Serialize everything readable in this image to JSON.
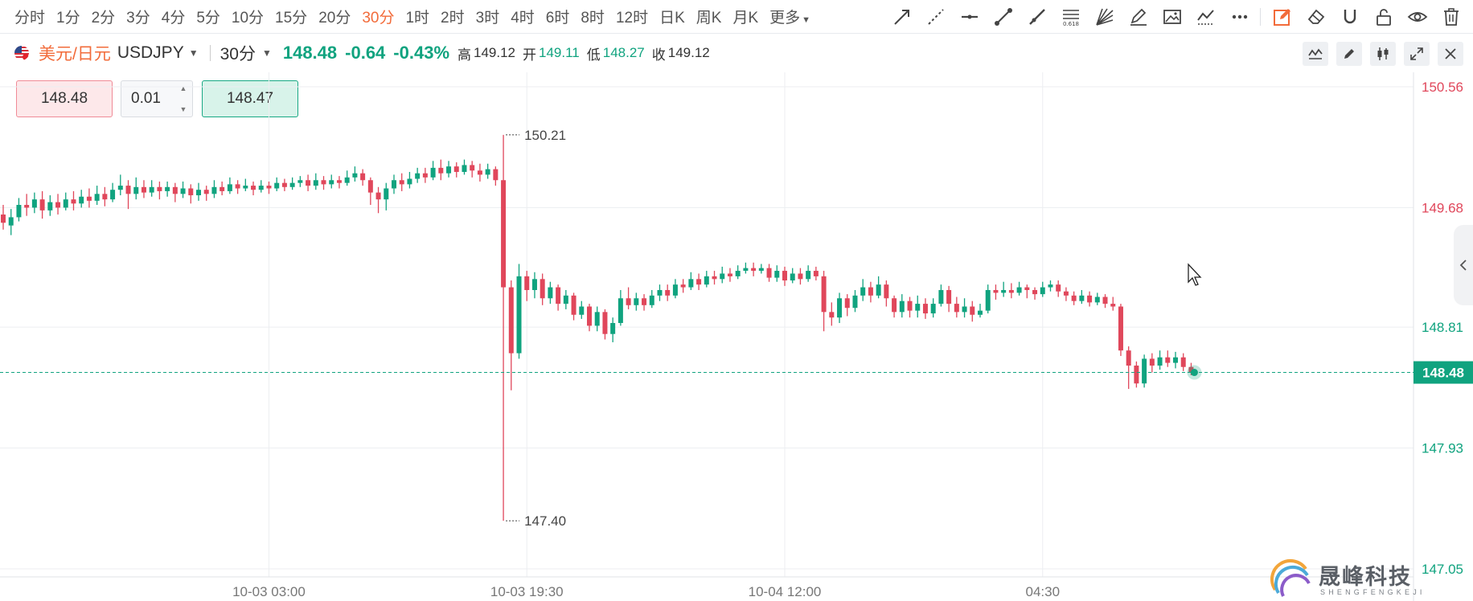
{
  "toolbar": {
    "periods": [
      "分时",
      "1分",
      "2分",
      "3分",
      "4分",
      "5分",
      "10分",
      "15分",
      "20分",
      "30分",
      "1时",
      "2时",
      "3时",
      "4时",
      "6时",
      "8时",
      "12时",
      "日K",
      "周K",
      "月K",
      "更多"
    ],
    "active_period": "30分",
    "tools": [
      "arrow-line-icon",
      "dashed-line-icon",
      "horizontal-line-icon",
      "segment-icon",
      "ray-icon",
      "fibonacci-icon",
      "fan-icon",
      "highlighter-icon",
      "image-icon",
      "trend-icon",
      "more-dots-icon",
      "edit-icon",
      "eraser-icon",
      "magnet-icon",
      "unlock-icon",
      "eye-icon",
      "trash-icon"
    ]
  },
  "info": {
    "symbol_cn": "美元/日元",
    "symbol_en": "USDJPY",
    "timeframe": "30分",
    "price": "148.48",
    "change": "-0.64",
    "change_pct": "-0.43%",
    "high_label": "高",
    "high": "149.12",
    "open_label": "开",
    "open": "149.11",
    "low_label": "低",
    "low": "148.27",
    "close_label": "收",
    "close": "149.12"
  },
  "trade": {
    "sell_price": "148.48",
    "quantity": "0.01",
    "buy_price": "148.47"
  },
  "colors": {
    "up": "#10a37f",
    "down": "#e0475b",
    "accent": "#f26b3a"
  },
  "watermark": {
    "text": "晟峰科技",
    "sub": "SHENGFENGKEJI"
  },
  "chart_data": {
    "type": "candlestick",
    "title": "",
    "ylim": [
      147.05,
      150.56
    ],
    "y_ticks": [
      {
        "label": "150.56",
        "value": 150.56,
        "color": "#e0475b"
      },
      {
        "label": "149.68",
        "value": 149.68,
        "color": "#e0475b"
      },
      {
        "label": "148.81",
        "value": 148.81,
        "color": "#10a37f"
      },
      {
        "label": "147.93",
        "value": 147.93,
        "color": "#10a37f"
      },
      {
        "label": "147.05",
        "value": 147.05,
        "color": "#10a37f"
      }
    ],
    "x_ticks": [
      {
        "label": "10-03 03:00",
        "index": 34
      },
      {
        "label": "10-03 19:30",
        "index": 67
      },
      {
        "label": "10-04 12:00",
        "index": 100
      },
      {
        "label": "04:30",
        "index": 133
      }
    ],
    "current_price": {
      "label": "148.48",
      "value": 148.48
    },
    "annotations": [
      {
        "label": "150.21",
        "value": 150.21,
        "index": 64
      },
      {
        "label": "147.40",
        "value": 147.4,
        "index": 64
      }
    ],
    "candles": [
      [
        149.63,
        149.57,
        149.7,
        149.52
      ],
      [
        149.55,
        149.61,
        149.67,
        149.48
      ],
      [
        149.61,
        149.7,
        149.75,
        149.58
      ],
      [
        149.7,
        149.68,
        149.78,
        149.62
      ],
      [
        149.68,
        149.74,
        149.79,
        149.64
      ],
      [
        149.74,
        149.66,
        149.8,
        149.6
      ],
      [
        149.66,
        149.72,
        149.77,
        149.62
      ],
      [
        149.72,
        149.68,
        149.78,
        149.63
      ],
      [
        149.68,
        149.74,
        149.79,
        149.66
      ],
      [
        149.74,
        149.71,
        149.8,
        149.66
      ],
      [
        149.71,
        149.76,
        149.81,
        149.68
      ],
      [
        149.76,
        149.73,
        149.82,
        149.68
      ],
      [
        149.73,
        149.78,
        149.84,
        149.7
      ],
      [
        149.78,
        149.74,
        149.83,
        149.69
      ],
      [
        149.74,
        149.81,
        149.86,
        149.72
      ],
      [
        149.81,
        149.84,
        149.92,
        149.77
      ],
      [
        149.84,
        149.78,
        149.88,
        149.67
      ],
      [
        149.78,
        149.83,
        149.9,
        149.74
      ],
      [
        149.83,
        149.79,
        149.88,
        149.75
      ],
      [
        149.79,
        149.83,
        149.88,
        149.76
      ],
      [
        149.83,
        149.8,
        149.87,
        149.74
      ],
      [
        149.8,
        149.83,
        149.87,
        149.76
      ],
      [
        149.83,
        149.78,
        149.86,
        149.72
      ],
      [
        149.78,
        149.82,
        149.87,
        149.75
      ],
      [
        149.82,
        149.77,
        149.85,
        149.71
      ],
      [
        149.77,
        149.81,
        149.86,
        149.73
      ],
      [
        149.81,
        149.78,
        149.84,
        149.73
      ],
      [
        149.78,
        149.83,
        149.88,
        149.75
      ],
      [
        149.83,
        149.8,
        149.87,
        149.77
      ],
      [
        149.8,
        149.85,
        149.9,
        149.78
      ],
      [
        149.85,
        149.82,
        149.88,
        149.78
      ],
      [
        149.82,
        149.84,
        149.89,
        149.8
      ],
      [
        149.84,
        149.81,
        149.87,
        149.77
      ],
      [
        149.81,
        149.84,
        149.88,
        149.79
      ],
      [
        149.84,
        149.82,
        149.87,
        149.78
      ],
      [
        149.82,
        149.86,
        149.9,
        149.8
      ],
      [
        149.86,
        149.83,
        149.89,
        149.8
      ],
      [
        149.83,
        149.86,
        149.9,
        149.81
      ],
      [
        149.86,
        149.88,
        149.91,
        149.83
      ],
      [
        149.88,
        149.84,
        149.92,
        149.8
      ],
      [
        149.84,
        149.88,
        149.93,
        149.81
      ],
      [
        149.88,
        149.85,
        149.91,
        149.81
      ],
      [
        149.85,
        149.88,
        149.92,
        149.82
      ],
      [
        149.88,
        149.86,
        149.91,
        149.82
      ],
      [
        149.86,
        149.9,
        149.95,
        149.84
      ],
      [
        149.9,
        149.93,
        149.98,
        149.87
      ],
      [
        149.93,
        149.88,
        149.96,
        149.84
      ],
      [
        149.88,
        149.79,
        149.9,
        149.7
      ],
      [
        149.79,
        149.74,
        149.83,
        149.64
      ],
      [
        149.74,
        149.82,
        149.86,
        149.66
      ],
      [
        149.82,
        149.88,
        149.92,
        149.78
      ],
      [
        149.88,
        149.85,
        149.93,
        149.8
      ],
      [
        149.85,
        149.89,
        149.94,
        149.82
      ],
      [
        149.89,
        149.93,
        149.97,
        149.86
      ],
      [
        149.93,
        149.9,
        149.97,
        149.86
      ],
      [
        149.9,
        149.97,
        150.02,
        149.88
      ],
      [
        149.97,
        149.93,
        150.03,
        149.88
      ],
      [
        149.93,
        149.98,
        150.02,
        149.9
      ],
      [
        149.98,
        149.94,
        150.01,
        149.9
      ],
      [
        149.94,
        149.99,
        150.03,
        149.92
      ],
      [
        149.99,
        149.95,
        150.02,
        149.9
      ],
      [
        149.95,
        149.92,
        150.0,
        149.87
      ],
      [
        149.92,
        149.96,
        150.0,
        149.89
      ],
      [
        149.96,
        149.88,
        149.98,
        149.84
      ],
      [
        149.88,
        149.1,
        150.21,
        147.4
      ],
      [
        149.1,
        148.62,
        149.15,
        148.35
      ],
      [
        148.62,
        149.18,
        149.27,
        148.58
      ],
      [
        149.18,
        149.08,
        149.22,
        149.0
      ],
      [
        149.08,
        149.16,
        149.21,
        149.02
      ],
      [
        149.16,
        149.02,
        149.2,
        148.97
      ],
      [
        149.02,
        149.1,
        149.14,
        148.98
      ],
      [
        149.1,
        148.98,
        149.12,
        148.93
      ],
      [
        148.98,
        149.04,
        149.08,
        148.94
      ],
      [
        149.04,
        148.9,
        149.06,
        148.86
      ],
      [
        148.9,
        148.96,
        149.0,
        148.87
      ],
      [
        148.96,
        148.82,
        148.98,
        148.78
      ],
      [
        148.82,
        148.92,
        148.96,
        148.78
      ],
      [
        148.92,
        148.76,
        148.94,
        148.72
      ],
      [
        148.76,
        148.84,
        148.88,
        148.7
      ],
      [
        148.84,
        149.02,
        149.08,
        148.82
      ],
      [
        149.02,
        148.97,
        149.1,
        148.94
      ],
      [
        148.97,
        149.02,
        149.06,
        148.93
      ],
      [
        149.02,
        148.97,
        149.05,
        148.93
      ],
      [
        148.97,
        149.04,
        149.08,
        148.95
      ],
      [
        149.04,
        149.08,
        149.12,
        149.0
      ],
      [
        149.08,
        149.04,
        149.12,
        149.0
      ],
      [
        149.04,
        149.12,
        149.16,
        149.02
      ],
      [
        149.12,
        149.1,
        149.16,
        149.06
      ],
      [
        149.1,
        149.16,
        149.21,
        149.08
      ],
      [
        149.16,
        149.12,
        149.2,
        149.08
      ],
      [
        149.12,
        149.18,
        149.22,
        149.1
      ],
      [
        149.18,
        149.16,
        149.22,
        149.12
      ],
      [
        149.16,
        149.2,
        149.25,
        149.13
      ],
      [
        149.2,
        149.18,
        149.24,
        149.14
      ],
      [
        149.18,
        149.22,
        149.26,
        149.16
      ],
      [
        149.22,
        149.24,
        149.28,
        149.2
      ],
      [
        149.24,
        149.22,
        149.28,
        149.18
      ],
      [
        149.22,
        149.24,
        149.27,
        149.2
      ],
      [
        149.24,
        149.17,
        149.27,
        149.14
      ],
      [
        149.17,
        149.22,
        149.26,
        149.14
      ],
      [
        149.22,
        149.15,
        149.25,
        149.11
      ],
      [
        149.15,
        149.2,
        149.24,
        149.13
      ],
      [
        149.2,
        149.16,
        149.24,
        149.12
      ],
      [
        149.16,
        149.22,
        149.26,
        149.14
      ],
      [
        149.22,
        149.18,
        149.25,
        149.15
      ],
      [
        149.18,
        148.92,
        149.22,
        148.78
      ],
      [
        148.92,
        148.88,
        148.99,
        148.82
      ],
      [
        148.88,
        149.02,
        149.06,
        148.84
      ],
      [
        149.02,
        148.95,
        149.05,
        148.89
      ],
      [
        148.95,
        149.04,
        149.08,
        148.92
      ],
      [
        149.04,
        149.1,
        149.16,
        149.0
      ],
      [
        149.1,
        149.04,
        149.14,
        148.99
      ],
      [
        149.04,
        149.12,
        149.18,
        149.02
      ],
      [
        149.12,
        149.02,
        149.15,
        148.96
      ],
      [
        149.02,
        148.92,
        149.04,
        148.88
      ],
      [
        148.92,
        149.0,
        149.05,
        148.88
      ],
      [
        149.0,
        148.93,
        149.03,
        148.88
      ],
      [
        148.93,
        148.98,
        149.04,
        148.88
      ],
      [
        148.98,
        148.91,
        149.02,
        148.87
      ],
      [
        148.91,
        148.98,
        149.02,
        148.88
      ],
      [
        148.98,
        149.08,
        149.12,
        148.96
      ],
      [
        149.08,
        148.98,
        149.11,
        148.92
      ],
      [
        148.98,
        148.92,
        149.03,
        148.88
      ],
      [
        148.92,
        148.96,
        149.02,
        148.88
      ],
      [
        148.96,
        148.9,
        149.0,
        148.85
      ],
      [
        148.9,
        148.93,
        148.98,
        148.88
      ],
      [
        148.93,
        149.08,
        149.12,
        148.91
      ],
      [
        149.08,
        149.06,
        149.12,
        149.01
      ],
      [
        149.06,
        149.08,
        149.14,
        149.03
      ],
      [
        149.08,
        149.06,
        149.13,
        149.02
      ],
      [
        149.06,
        149.1,
        149.14,
        149.04
      ],
      [
        149.1,
        149.08,
        149.12,
        149.02
      ],
      [
        149.08,
        149.05,
        149.1,
        149.01
      ],
      [
        149.05,
        149.1,
        149.14,
        149.03
      ],
      [
        149.1,
        149.12,
        149.15,
        149.07
      ],
      [
        149.12,
        149.07,
        149.15,
        149.03
      ],
      [
        149.07,
        149.04,
        149.1,
        149.0
      ],
      [
        149.04,
        149.0,
        149.07,
        148.97
      ],
      [
        149.0,
        149.04,
        149.08,
        148.98
      ],
      [
        149.04,
        148.99,
        149.07,
        148.96
      ],
      [
        148.99,
        149.03,
        149.06,
        148.97
      ],
      [
        149.03,
        148.98,
        149.05,
        148.95
      ],
      [
        148.98,
        148.96,
        149.03,
        148.93
      ],
      [
        148.96,
        148.64,
        148.98,
        148.6
      ],
      [
        148.64,
        148.53,
        148.67,
        148.36
      ],
      [
        148.53,
        148.4,
        148.56,
        148.37
      ],
      [
        148.4,
        148.58,
        148.61,
        148.37
      ],
      [
        148.58,
        148.53,
        148.62,
        148.48
      ],
      [
        148.53,
        148.59,
        148.64,
        148.5
      ],
      [
        148.59,
        148.55,
        148.64,
        148.52
      ],
      [
        148.55,
        148.59,
        148.63,
        148.51
      ],
      [
        148.59,
        148.52,
        148.62,
        148.49
      ],
      [
        148.52,
        148.48,
        148.55,
        148.46
      ]
    ]
  }
}
